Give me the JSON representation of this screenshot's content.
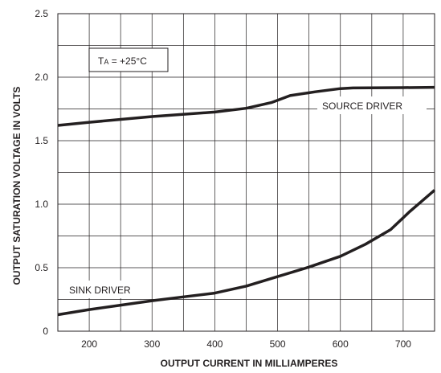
{
  "chart_data": {
    "type": "line",
    "xlabel": "OUTPUT CURRENT IN MILLIAMPERES",
    "ylabel": "OUTPUT SATURATION VOLTAGE IN VOLTS",
    "xlim": [
      150,
      750
    ],
    "ylim": [
      0,
      2.5
    ],
    "x_ticks": [
      "200",
      "300",
      "400",
      "500",
      "600",
      "700"
    ],
    "y_ticks": [
      "0",
      "0.5",
      "1.0",
      "1.5",
      "2.0",
      "2.5"
    ],
    "grid": true,
    "annotation": {
      "main": "T",
      "sub": "A",
      "rest": " = +25°C"
    },
    "series": [
      {
        "name": "SOURCE DRIVER",
        "x": [
          150,
          200,
          300,
          400,
          450,
          490,
          520,
          560,
          600,
          620,
          700,
          750
        ],
        "y": [
          1.62,
          1.645,
          1.69,
          1.725,
          1.755,
          1.8,
          1.855,
          1.885,
          1.91,
          1.915,
          1.918,
          1.92
        ]
      },
      {
        "name": "SINK DRIVER",
        "x": [
          150,
          200,
          250,
          300,
          350,
          400,
          450,
          500,
          550,
          600,
          640,
          680,
          710,
          750
        ],
        "y": [
          0.13,
          0.17,
          0.205,
          0.24,
          0.27,
          0.3,
          0.355,
          0.43,
          0.505,
          0.59,
          0.685,
          0.8,
          0.94,
          1.11
        ]
      }
    ]
  }
}
